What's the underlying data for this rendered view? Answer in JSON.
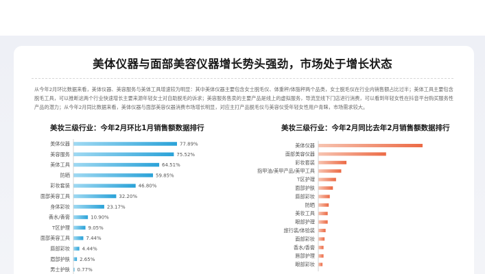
{
  "page": {
    "title": "美体仪器与面部美容仪器增长势头强劲，市场处于增长状态",
    "description": "从今年2月环比数据来看，美体仪器、美容服务与美体工具增速较为明显：其中美体仪器主要包含女士脱毛仪、体重秤/体脂秤两个品类，女士脱毛仪在行业内销售额占比过半；美体工具主要包含脱毛工具，可以推断这两个行业快速增长主要来源年轻女士对自助脱毛的诉求；美容服务售卖的主要产品是线上的虚拟服务，导流至线下门店进行消费，可以看到年轻女性在抖音平台购买服务性产品的潜力；从今年2月同比数据来看，美体仪器与面部美容仪器消费市场增长明显，对应主打产品脱毛仪与美容仪受年轻女性用户青睐，市场需求较大。"
  },
  "chart_data": [
    {
      "type": "bar",
      "orientation": "horizontal",
      "title": "美妆三级行业：今年2月环比1月销售额数据排行",
      "categories": [
        "美体仪器",
        "美容服务",
        "美体工具",
        "防晒",
        "彩妆套装",
        "面部美容工具",
        "身体彩妆",
        "香水/香膏",
        "T区护理",
        "面部美容工具",
        "唇部彩妆",
        "眉部护肤",
        "男士护肤"
      ],
      "values": [
        77.89,
        75.52,
        64.51,
        59.85,
        46.8,
        32.2,
        23.17,
        10.9,
        9.05,
        7.44,
        4.44,
        2.65,
        0.77
      ],
      "value_labels": [
        "77.89%",
        "75.52%",
        "64.51%",
        "59.85%",
        "46.80%",
        "32.20%",
        "23.17%",
        "10.90%",
        "9.05%",
        "7.44%",
        "4.44%",
        "2.65%",
        "0.77%"
      ],
      "unit": "%",
      "color": "#2aa2d8"
    },
    {
      "type": "bar",
      "orientation": "horizontal",
      "title": "美妆三级行业：今年2月同比去年2月销售额数据排行",
      "categories": [
        "美体仪器",
        "面部美容仪器",
        "彩妆套装",
        "指甲油/美甲产品/美甲工具",
        "T区护理",
        "面部护肤",
        "唇部彩妆",
        "防晒",
        "美妆工具",
        "眼部护理",
        "旅行装/体验装",
        "面部彩妆",
        "香水/香膏",
        "唇部护理",
        "眼部彩妆"
      ],
      "values": [
        100,
        65,
        27,
        22,
        17,
        14,
        11,
        10,
        9,
        9,
        7,
        6,
        5,
        5,
        4
      ],
      "color": "#ec6a45"
    }
  ]
}
